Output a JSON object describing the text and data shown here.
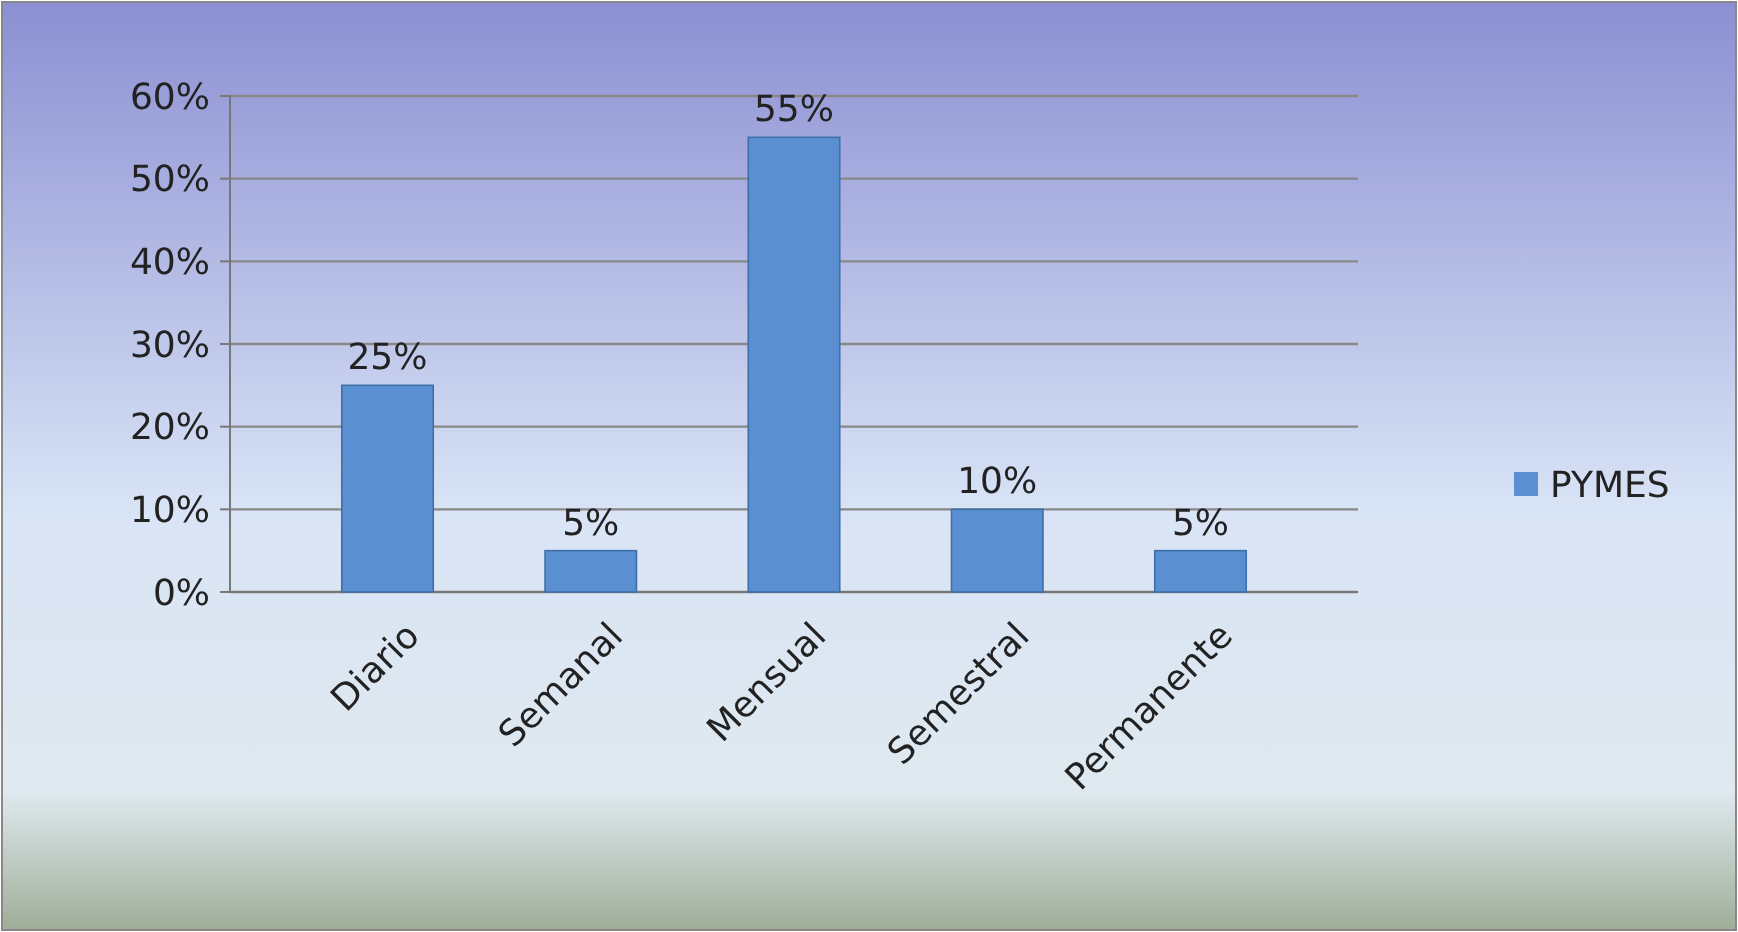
{
  "chart_data": {
    "type": "bar",
    "categories": [
      "Diario",
      "Semanal",
      "Mensual",
      "Semestral",
      "Permanente"
    ],
    "series": [
      {
        "name": "PYMES",
        "color": "#5a8fd2",
        "values": [
          25,
          5,
          55,
          10,
          5
        ],
        "value_labels": [
          "25%",
          "5%",
          "55%",
          "10%",
          "5%"
        ]
      }
    ],
    "ylim": [
      0,
      60
    ],
    "yticks": [
      {
        "value": 0,
        "label": "0%"
      },
      {
        "value": 10,
        "label": "10%"
      },
      {
        "value": 20,
        "label": "20%"
      },
      {
        "value": 30,
        "label": "30%"
      },
      {
        "value": 40,
        "label": "40%"
      },
      {
        "value": 50,
        "label": "50%"
      },
      {
        "value": 60,
        "label": "60%"
      }
    ],
    "grid": "y",
    "legend": "right"
  }
}
